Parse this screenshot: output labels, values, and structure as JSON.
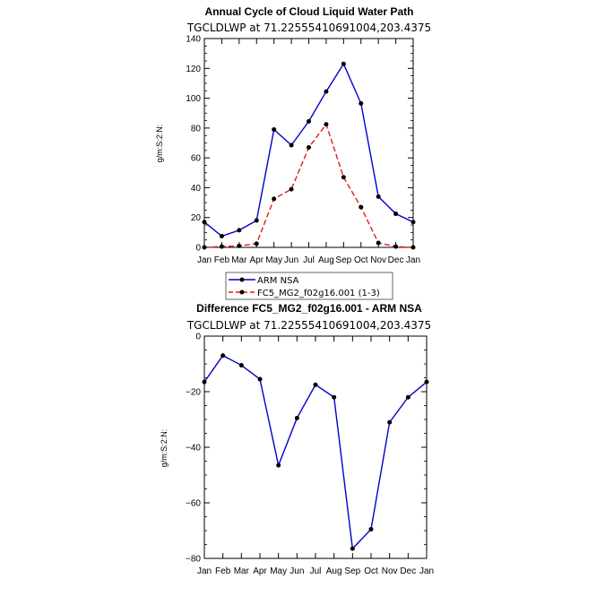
{
  "chart_data": [
    {
      "type": "line",
      "title": "Annual Cycle of Cloud Liquid Water Path",
      "subtitle": "TGCLDLWP at 71.22555410691004,203.4375",
      "xlabel": "",
      "ylabel": "g/m:S:2:N:",
      "categories": [
        "Jan",
        "Feb",
        "Mar",
        "Apr",
        "May",
        "Jun",
        "Jul",
        "Aug",
        "Sep",
        "Oct",
        "Nov",
        "Dec",
        "Jan"
      ],
      "ylim": [
        0,
        140
      ],
      "yticks": [
        0,
        20,
        40,
        60,
        80,
        100,
        120,
        140
      ],
      "series": [
        {
          "name": "ARM NSA",
          "color": "#0000cc",
          "dash": "solid",
          "values": [
            17,
            7.5,
            11.5,
            18,
            79,
            68.5,
            84.5,
            104.5,
            123,
            96.5,
            34,
            22.5,
            17
          ]
        },
        {
          "name": "FC5_MG2_f02g16.001 (1-3)",
          "color": "#e31a1c",
          "dash": "dashed",
          "values": [
            0,
            0.5,
            1,
            2.5,
            32.5,
            39,
            67,
            82.5,
            47,
            27,
            3,
            0.5,
            0
          ]
        }
      ],
      "legend": "below"
    },
    {
      "type": "line",
      "title": "Difference FC5_MG2_f02g16.001 - ARM NSA",
      "subtitle": "TGCLDLWP at 71.22555410691004,203.4375",
      "xlabel": "",
      "ylabel": "g/m:S:2:N:",
      "categories": [
        "Jan",
        "Feb",
        "Mar",
        "Apr",
        "May",
        "Jun",
        "Jul",
        "Aug",
        "Sep",
        "Oct",
        "Nov",
        "Dec",
        "Jan"
      ],
      "ylim": [
        -80,
        0
      ],
      "yticks": [
        -80,
        -60,
        -40,
        -20,
        0
      ],
      "series": [
        {
          "color": "#0000cc",
          "dash": "solid",
          "values": [
            -16.5,
            -7,
            -10.5,
            -15.5,
            -46.5,
            -29.5,
            -17.5,
            -22,
            -76.5,
            -69.5,
            -31,
            -22,
            -16.5
          ]
        }
      ]
    }
  ]
}
